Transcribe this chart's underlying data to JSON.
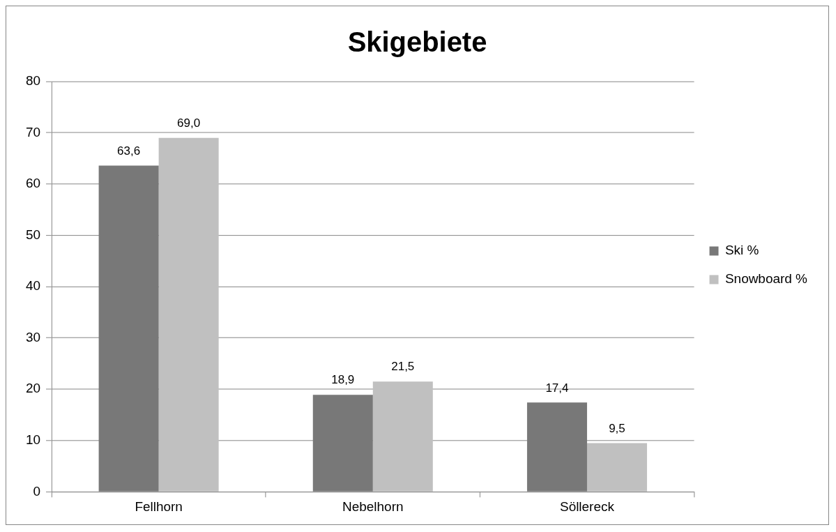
{
  "chart_data": {
    "type": "bar",
    "title": "Skigebiete",
    "categories": [
      "Fellhorn",
      "Nebelhorn",
      "Söllereck"
    ],
    "series": [
      {
        "name": "Ski %",
        "color": "#787878",
        "values": [
          63.6,
          18.9,
          17.4
        ],
        "value_labels": [
          "63,6",
          "18,9",
          "17,4"
        ]
      },
      {
        "name": "Snowboard %",
        "color": "#c0c0c0",
        "values": [
          69.0,
          21.5,
          9.5
        ],
        "value_labels": [
          "69,0",
          "21,5",
          "9,5"
        ]
      }
    ],
    "ylim": [
      0,
      80
    ],
    "yticks": [
      0,
      10,
      20,
      30,
      40,
      50,
      60,
      70,
      80
    ],
    "grid": "y",
    "legend": "right"
  }
}
